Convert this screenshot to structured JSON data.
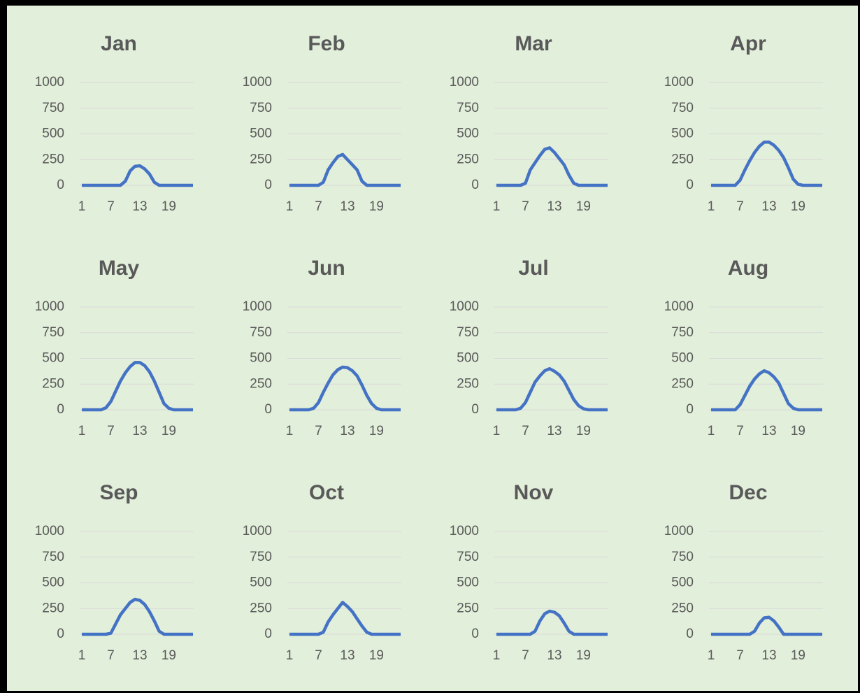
{
  "chart_data": [
    {
      "type": "line",
      "title": "Jan",
      "x": [
        1,
        2,
        3,
        4,
        5,
        6,
        7,
        8,
        9,
        10,
        11,
        12,
        13,
        14,
        15,
        16,
        17,
        18,
        19,
        20,
        21,
        22,
        23,
        24
      ],
      "values": [
        0,
        0,
        0,
        0,
        0,
        0,
        0,
        0,
        0,
        40,
        140,
        185,
        190,
        160,
        110,
        30,
        0,
        0,
        0,
        0,
        0,
        0,
        0,
        0
      ],
      "color": "#4472c4",
      "xlim": [
        1,
        24
      ],
      "xticks": [
        1,
        7,
        13,
        19
      ],
      "ylim": [
        0,
        1000
      ],
      "yticks": [
        0,
        250,
        500,
        750,
        1000
      ],
      "grid": true
    },
    {
      "type": "line",
      "title": "Feb",
      "x": [
        1,
        2,
        3,
        4,
        5,
        6,
        7,
        8,
        9,
        10,
        11,
        12,
        13,
        14,
        15,
        16,
        17,
        18,
        19,
        20,
        21,
        22,
        23,
        24
      ],
      "values": [
        0,
        0,
        0,
        0,
        0,
        0,
        0,
        30,
        150,
        220,
        280,
        300,
        250,
        200,
        150,
        40,
        0,
        0,
        0,
        0,
        0,
        0,
        0,
        0
      ],
      "color": "#4472c4",
      "xlim": [
        1,
        24
      ],
      "xticks": [
        1,
        7,
        13,
        19
      ],
      "ylim": [
        0,
        1000
      ],
      "yticks": [
        0,
        250,
        500,
        750,
        1000
      ],
      "grid": true
    },
    {
      "type": "line",
      "title": "Mar",
      "x": [
        1,
        2,
        3,
        4,
        5,
        6,
        7,
        8,
        9,
        10,
        11,
        12,
        13,
        14,
        15,
        16,
        17,
        18,
        19,
        20,
        21,
        22,
        23,
        24
      ],
      "values": [
        0,
        0,
        0,
        0,
        0,
        0,
        20,
        150,
        220,
        290,
        350,
        365,
        320,
        260,
        200,
        100,
        20,
        0,
        0,
        0,
        0,
        0,
        0,
        0
      ],
      "color": "#4472c4",
      "xlim": [
        1,
        24
      ],
      "xticks": [
        1,
        7,
        13,
        19
      ],
      "ylim": [
        0,
        1000
      ],
      "yticks": [
        0,
        250,
        500,
        750,
        1000
      ],
      "grid": true
    },
    {
      "type": "line",
      "title": "Apr",
      "x": [
        1,
        2,
        3,
        4,
        5,
        6,
        7,
        8,
        9,
        10,
        11,
        12,
        13,
        14,
        15,
        16,
        17,
        18,
        19,
        20,
        21,
        22,
        23,
        24
      ],
      "values": [
        0,
        0,
        0,
        0,
        0,
        0,
        50,
        150,
        240,
        320,
        380,
        420,
        420,
        390,
        340,
        270,
        170,
        60,
        10,
        0,
        0,
        0,
        0,
        0
      ],
      "color": "#4472c4",
      "xlim": [
        1,
        24
      ],
      "xticks": [
        1,
        7,
        13,
        19
      ],
      "ylim": [
        0,
        1000
      ],
      "yticks": [
        0,
        250,
        500,
        750,
        1000
      ],
      "grid": true
    },
    {
      "type": "line",
      "title": "May",
      "x": [
        1,
        2,
        3,
        4,
        5,
        6,
        7,
        8,
        9,
        10,
        11,
        12,
        13,
        14,
        15,
        16,
        17,
        18,
        19,
        20,
        21,
        22,
        23,
        24
      ],
      "values": [
        0,
        0,
        0,
        0,
        0,
        20,
        80,
        180,
        280,
        360,
        420,
        460,
        460,
        430,
        370,
        280,
        170,
        60,
        15,
        0,
        0,
        0,
        0,
        0
      ],
      "color": "#4472c4",
      "xlim": [
        1,
        24
      ],
      "xticks": [
        1,
        7,
        13,
        19
      ],
      "ylim": [
        0,
        1000
      ],
      "yticks": [
        0,
        250,
        500,
        750,
        1000
      ],
      "grid": true
    },
    {
      "type": "line",
      "title": "Jun",
      "x": [
        1,
        2,
        3,
        4,
        5,
        6,
        7,
        8,
        9,
        10,
        11,
        12,
        13,
        14,
        15,
        16,
        17,
        18,
        19,
        20,
        21,
        22,
        23,
        24
      ],
      "values": [
        0,
        0,
        0,
        0,
        0,
        15,
        70,
        170,
        260,
        340,
        390,
        415,
        410,
        380,
        330,
        240,
        140,
        60,
        15,
        0,
        0,
        0,
        0,
        0
      ],
      "color": "#4472c4",
      "xlim": [
        1,
        24
      ],
      "xticks": [
        1,
        7,
        13,
        19
      ],
      "ylim": [
        0,
        1000
      ],
      "yticks": [
        0,
        250,
        500,
        750,
        1000
      ],
      "grid": true
    },
    {
      "type": "line",
      "title": "Jul",
      "x": [
        1,
        2,
        3,
        4,
        5,
        6,
        7,
        8,
        9,
        10,
        11,
        12,
        13,
        14,
        15,
        16,
        17,
        18,
        19,
        20,
        21,
        22,
        23,
        24
      ],
      "values": [
        0,
        0,
        0,
        0,
        0,
        15,
        70,
        170,
        270,
        330,
        380,
        400,
        375,
        340,
        280,
        190,
        100,
        40,
        10,
        0,
        0,
        0,
        0,
        0
      ],
      "color": "#4472c4",
      "xlim": [
        1,
        24
      ],
      "xticks": [
        1,
        7,
        13,
        19
      ],
      "ylim": [
        0,
        1000
      ],
      "yticks": [
        0,
        250,
        500,
        750,
        1000
      ],
      "grid": true
    },
    {
      "type": "line",
      "title": "Aug",
      "x": [
        1,
        2,
        3,
        4,
        5,
        6,
        7,
        8,
        9,
        10,
        11,
        12,
        13,
        14,
        15,
        16,
        17,
        18,
        19,
        20,
        21,
        22,
        23,
        24
      ],
      "values": [
        0,
        0,
        0,
        0,
        0,
        0,
        50,
        140,
        230,
        300,
        350,
        380,
        360,
        320,
        260,
        160,
        60,
        15,
        0,
        0,
        0,
        0,
        0,
        0
      ],
      "color": "#4472c4",
      "xlim": [
        1,
        24
      ],
      "xticks": [
        1,
        7,
        13,
        19
      ],
      "ylim": [
        0,
        1000
      ],
      "yticks": [
        0,
        250,
        500,
        750,
        1000
      ],
      "grid": true
    },
    {
      "type": "line",
      "title": "Sep",
      "x": [
        1,
        2,
        3,
        4,
        5,
        6,
        7,
        8,
        9,
        10,
        11,
        12,
        13,
        14,
        15,
        16,
        17,
        18,
        19,
        20,
        21,
        22,
        23,
        24
      ],
      "values": [
        0,
        0,
        0,
        0,
        0,
        0,
        10,
        100,
        190,
        250,
        310,
        340,
        330,
        290,
        220,
        130,
        30,
        0,
        0,
        0,
        0,
        0,
        0,
        0
      ],
      "color": "#4472c4",
      "xlim": [
        1,
        24
      ],
      "xticks": [
        1,
        7,
        13,
        19
      ],
      "ylim": [
        0,
        1000
      ],
      "yticks": [
        0,
        250,
        500,
        750,
        1000
      ],
      "grid": true
    },
    {
      "type": "line",
      "title": "Oct",
      "x": [
        1,
        2,
        3,
        4,
        5,
        6,
        7,
        8,
        9,
        10,
        11,
        12,
        13,
        14,
        15,
        16,
        17,
        18,
        19,
        20,
        21,
        22,
        23,
        24
      ],
      "values": [
        0,
        0,
        0,
        0,
        0,
        0,
        0,
        20,
        120,
        190,
        250,
        310,
        270,
        220,
        150,
        80,
        20,
        0,
        0,
        0,
        0,
        0,
        0,
        0
      ],
      "color": "#4472c4",
      "xlim": [
        1,
        24
      ],
      "xticks": [
        1,
        7,
        13,
        19
      ],
      "ylim": [
        0,
        1000
      ],
      "yticks": [
        0,
        250,
        500,
        750,
        1000
      ],
      "grid": true
    },
    {
      "type": "line",
      "title": "Nov",
      "x": [
        1,
        2,
        3,
        4,
        5,
        6,
        7,
        8,
        9,
        10,
        11,
        12,
        13,
        14,
        15,
        16,
        17,
        18,
        19,
        20,
        21,
        22,
        23,
        24
      ],
      "values": [
        0,
        0,
        0,
        0,
        0,
        0,
        0,
        0,
        30,
        130,
        200,
        225,
        215,
        180,
        110,
        30,
        0,
        0,
        0,
        0,
        0,
        0,
        0,
        0
      ],
      "color": "#4472c4",
      "xlim": [
        1,
        24
      ],
      "xticks": [
        1,
        7,
        13,
        19
      ],
      "ylim": [
        0,
        1000
      ],
      "yticks": [
        0,
        250,
        500,
        750,
        1000
      ],
      "grid": true
    },
    {
      "type": "line",
      "title": "Dec",
      "x": [
        1,
        2,
        3,
        4,
        5,
        6,
        7,
        8,
        9,
        10,
        11,
        12,
        13,
        14,
        15,
        16,
        17,
        18,
        19,
        20,
        21,
        22,
        23,
        24
      ],
      "values": [
        0,
        0,
        0,
        0,
        0,
        0,
        0,
        0,
        0,
        30,
        110,
        160,
        165,
        130,
        70,
        0,
        0,
        0,
        0,
        0,
        0,
        0,
        0,
        0
      ],
      "color": "#4472c4",
      "xlim": [
        1,
        24
      ],
      "xticks": [
        1,
        7,
        13,
        19
      ],
      "ylim": [
        0,
        1000
      ],
      "yticks": [
        0,
        250,
        500,
        750,
        1000
      ],
      "grid": true
    }
  ]
}
